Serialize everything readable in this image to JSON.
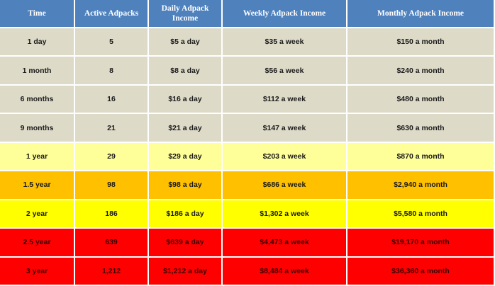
{
  "headers": {
    "time": "Time",
    "active": "Active Adpacks",
    "daily": "Daily Adpack Income",
    "weekly": "Weekly Adpack Income",
    "monthly": "Monthly Adpack Income"
  },
  "rows": [
    {
      "time": "1 day",
      "active": "5",
      "daily": "$5 a day",
      "weekly": "$35 a week",
      "monthly": "$150 a month",
      "color": "#dddac8"
    },
    {
      "time": "1 month",
      "active": "8",
      "daily": "$8 a day",
      "weekly": "$56 a week",
      "monthly": "$240 a month",
      "color": "#dddac8"
    },
    {
      "time": "6 months",
      "active": "16",
      "daily": "$16 a day",
      "weekly": "$112 a week",
      "monthly": "$480 a month",
      "color": "#dddac8"
    },
    {
      "time": "9 months",
      "active": "21",
      "daily": "$21 a day",
      "weekly": "$147 a week",
      "monthly": "$630 a month",
      "color": "#dddac8"
    },
    {
      "time": "1 year",
      "active": "29",
      "daily": "$29 a day",
      "weekly": "$203 a week",
      "monthly": "$870 a month",
      "color": "#ffff99"
    },
    {
      "time": "1.5 year",
      "active": "98",
      "daily": "$98 a day",
      "weekly": "$686 a week",
      "monthly": "$2,940 a month",
      "color": "#ffc000"
    },
    {
      "time": "2 year",
      "active": "186",
      "daily": "$186 a day",
      "weekly": "$1,302 a week",
      "monthly": "$5,580 a month",
      "color": "#ffff00"
    },
    {
      "time": "2.5 year",
      "active": "639",
      "daily": "$639 a day",
      "weekly": "$4,473 a week",
      "monthly": "$19,170 a month",
      "color": "#ff0000"
    },
    {
      "time": "3 year",
      "active": "1,212",
      "daily": "$1,212 a day",
      "weekly": "$8,484 a week",
      "monthly": "$36,360  a month",
      "color": "#ff0000"
    }
  ],
  "colors": {
    "header": "#4f81bd",
    "grey": "#dddac8",
    "light_yellow": "#ffff99",
    "orange": "#ffc000",
    "yellow": "#ffff00",
    "red": "#ff0000"
  }
}
